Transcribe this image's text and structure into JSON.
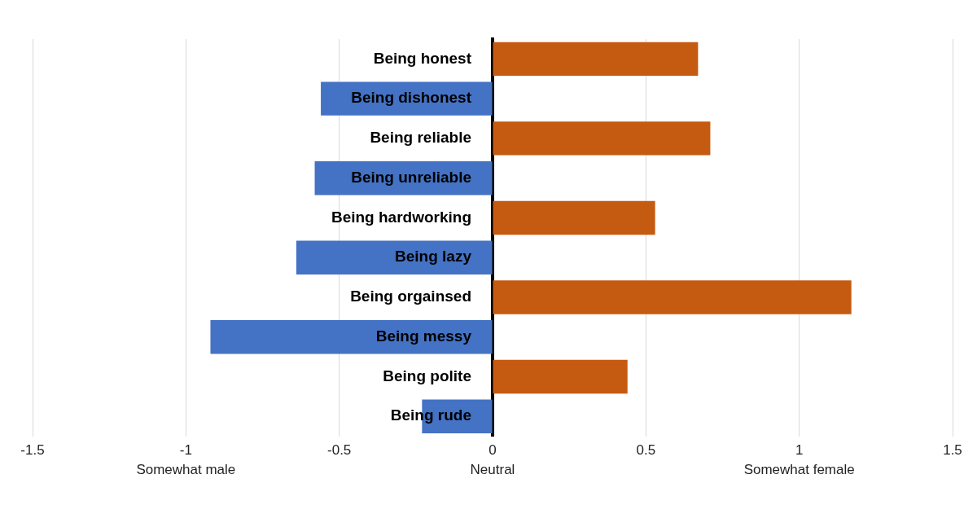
{
  "chart_data": {
    "type": "bar",
    "orientation": "horizontal",
    "categories": [
      "Being honest",
      "Being dishonest",
      "Being reliable",
      "Being unreliable",
      "Being hardworking",
      "Being lazy",
      "Being orgainsed",
      "Being messy",
      "Being polite",
      "Being rude"
    ],
    "values": [
      0.67,
      -0.56,
      0.71,
      -0.58,
      0.53,
      -0.64,
      1.17,
      -0.92,
      0.44,
      -0.23
    ],
    "colors": [
      "#c55a11",
      "#4472c4",
      "#c55a11",
      "#4472c4",
      "#c55a11",
      "#4472c4",
      "#c55a11",
      "#4472c4",
      "#c55a11",
      "#4472c4"
    ],
    "xlim": [
      -1.5,
      1.5
    ],
    "xticks": [
      -1.5,
      -1,
      -0.5,
      0,
      0.5,
      1,
      1.5
    ],
    "grid": "x",
    "legend": false,
    "annotations": [
      "Somewhat male",
      "Neutral",
      "Somewhat female"
    ]
  }
}
